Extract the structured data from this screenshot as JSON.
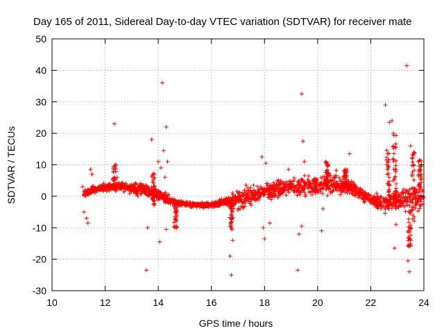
{
  "chart_data": {
    "type": "scatter",
    "title": "Day 165 of 2011, Sidereal Day-to-day VTEC variation (SDTVAR) for receiver mate",
    "xlabel": "GPS time / hours",
    "ylabel": "SDTVAR / TECUs",
    "xlim": [
      10,
      24
    ],
    "ylim": [
      -30,
      50
    ],
    "xticks": [
      10,
      12,
      14,
      16,
      18,
      20,
      22,
      24
    ],
    "yticks": [
      -30,
      -20,
      -10,
      0,
      10,
      20,
      30,
      40,
      50
    ],
    "xtick_labels": [
      "10",
      "12",
      "14",
      "16",
      "18",
      "20",
      "22",
      "24"
    ],
    "ytick_labels": [
      "-30",
      "-20",
      "-10",
      "0",
      "10",
      "20",
      "30",
      "40",
      "50"
    ],
    "grid": true,
    "marker": "+",
    "color": "#ff0000",
    "trend": {
      "x": [
        11.2,
        11.6,
        12.0,
        12.5,
        13.0,
        13.5,
        14.0,
        14.5,
        15.0,
        15.5,
        16.0,
        16.5,
        17.0,
        17.5,
        18.0,
        18.5,
        19.0,
        19.5,
        20.0,
        20.5,
        21.0,
        21.5,
        22.0,
        22.5,
        23.0,
        23.5,
        24.0
      ],
      "y": [
        1.0,
        2.2,
        2.8,
        3.2,
        2.6,
        2.0,
        0.5,
        -1.5,
        -2.5,
        -2.8,
        -2.8,
        -2.0,
        -1.0,
        0.0,
        1.5,
        2.5,
        3.0,
        3.2,
        3.5,
        4.0,
        3.5,
        1.5,
        -1.0,
        -2.5,
        -1.5,
        0.0,
        -1.5
      ],
      "spread": [
        1.0,
        0.8,
        0.8,
        1.0,
        1.2,
        1.5,
        1.5,
        1.0,
        0.7,
        0.6,
        0.6,
        0.8,
        2.5,
        2.0,
        2.0,
        2.0,
        2.0,
        2.5,
        2.5,
        2.5,
        2.2,
        1.5,
        1.5,
        2.0,
        3.0,
        3.0,
        3.5
      ],
      "n": 1800
    },
    "outliers": [
      {
        "x": 11.15,
        "y": 3.0
      },
      {
        "x": 11.2,
        "y": -5.0
      },
      {
        "x": 11.3,
        "y": -7.0
      },
      {
        "x": 11.35,
        "y": -8.5
      },
      {
        "x": 11.45,
        "y": 8.5
      },
      {
        "x": 11.5,
        "y": 7.0
      },
      {
        "x": 12.35,
        "y": 23.0
      },
      {
        "x": 12.4,
        "y": 10.0
      },
      {
        "x": 12.45,
        "y": 6.0
      },
      {
        "x": 13.55,
        "y": -23.5
      },
      {
        "x": 13.6,
        "y": -10.0
      },
      {
        "x": 13.75,
        "y": 18.0
      },
      {
        "x": 13.8,
        "y": 7.0
      },
      {
        "x": 14.0,
        "y": 11.0
      },
      {
        "x": 14.05,
        "y": -14.5
      },
      {
        "x": 14.1,
        "y": 9.0
      },
      {
        "x": 14.15,
        "y": 36.0
      },
      {
        "x": 14.2,
        "y": 14.5
      },
      {
        "x": 14.25,
        "y": 6.0
      },
      {
        "x": 14.3,
        "y": 22.0
      },
      {
        "x": 14.3,
        "y": -10.5
      },
      {
        "x": 14.35,
        "y": 11.0
      },
      {
        "x": 14.7,
        "y": -10.0
      },
      {
        "x": 16.7,
        "y": -19.0
      },
      {
        "x": 16.75,
        "y": -25.0
      },
      {
        "x": 16.8,
        "y": -14.0
      },
      {
        "x": 17.3,
        "y": 3.5
      },
      {
        "x": 17.9,
        "y": 12.5
      },
      {
        "x": 17.95,
        "y": -10.0
      },
      {
        "x": 18.0,
        "y": -13.5
      },
      {
        "x": 18.05,
        "y": 10.5
      },
      {
        "x": 18.2,
        "y": -8.5
      },
      {
        "x": 18.9,
        "y": 8.5
      },
      {
        "x": 19.25,
        "y": -23.5
      },
      {
        "x": 19.3,
        "y": -12.0
      },
      {
        "x": 19.4,
        "y": 32.5
      },
      {
        "x": 19.45,
        "y": 17.5
      },
      {
        "x": 19.5,
        "y": 11.0
      },
      {
        "x": 19.4,
        "y": -9.5
      },
      {
        "x": 20.15,
        "y": -11.0
      },
      {
        "x": 20.2,
        "y": -4.0
      },
      {
        "x": 20.3,
        "y": 11.0
      },
      {
        "x": 21.2,
        "y": 13.5
      },
      {
        "x": 22.55,
        "y": 29.0
      },
      {
        "x": 22.6,
        "y": 10.0
      },
      {
        "x": 22.7,
        "y": 23.5
      },
      {
        "x": 22.8,
        "y": 24.0
      },
      {
        "x": 22.85,
        "y": 20.0
      },
      {
        "x": 22.9,
        "y": -16.5
      },
      {
        "x": 22.95,
        "y": -9.0
      },
      {
        "x": 23.35,
        "y": 41.5
      },
      {
        "x": 23.4,
        "y": -20.5
      },
      {
        "x": 23.45,
        "y": -24.0
      },
      {
        "x": 23.5,
        "y": 16.0
      },
      {
        "x": 23.6,
        "y": 13.0
      },
      {
        "x": 23.8,
        "y": 11.0
      },
      {
        "x": 23.9,
        "y": 10.0
      },
      {
        "x": 23.5,
        "y": -14.0
      }
    ],
    "spikes": [
      {
        "x": 12.35,
        "y0": 2.0,
        "y1": 10.0
      },
      {
        "x": 13.8,
        "y0": -3.0,
        "y1": 8.0
      },
      {
        "x": 14.65,
        "y0": -10.0,
        "y1": -2.0
      },
      {
        "x": 16.75,
        "y0": -11.0,
        "y1": -2.0
      },
      {
        "x": 20.35,
        "y0": 3.0,
        "y1": 11.0
      },
      {
        "x": 21.05,
        "y0": 3.0,
        "y1": 9.0
      },
      {
        "x": 22.65,
        "y0": -2.0,
        "y1": 15.0
      },
      {
        "x": 22.9,
        "y0": 0.0,
        "y1": 19.5
      },
      {
        "x": 23.45,
        "y0": -16.0,
        "y1": -4.0
      },
      {
        "x": 23.6,
        "y0": -8.0,
        "y1": 14.0
      },
      {
        "x": 23.85,
        "y0": 3.0,
        "y1": 12.0
      }
    ]
  }
}
